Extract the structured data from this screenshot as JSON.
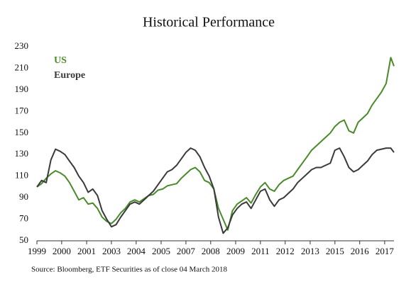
{
  "chart_data": {
    "type": "line",
    "title": "Historical Performance",
    "source": "Source: Bloomberg, ETF Securities as of close 04 March 2018",
    "x": [
      1999,
      1999.25,
      1999.5,
      1999.75,
      2000,
      2000.25,
      2000.5,
      2000.75,
      2001,
      2001.25,
      2001.5,
      2001.75,
      2002,
      2002.25,
      2002.5,
      2002.75,
      2003,
      2003.25,
      2003.5,
      2003.75,
      2004,
      2004.25,
      2004.5,
      2004.75,
      2005,
      2005.25,
      2005.5,
      2005.75,
      2006,
      2006.25,
      2006.5,
      2006.75,
      2007,
      2007.25,
      2007.5,
      2007.75,
      2008,
      2008.25,
      2008.5,
      2008.75,
      2009,
      2009.25,
      2009.5,
      2009.75,
      2010,
      2010.25,
      2010.5,
      2010.75,
      2011,
      2011.25,
      2011.5,
      2011.75,
      2012,
      2012.25,
      2012.5,
      2012.75,
      2013,
      2013.25,
      2013.5,
      2013.75,
      2014,
      2014.25,
      2014.5,
      2014.75,
      2015,
      2015.25,
      2015.5,
      2015.75,
      2016,
      2016.25,
      2016.5,
      2016.75,
      2017,
      2017.25,
      2017.5,
      2017.75,
      2018,
      2018.17
    ],
    "series": [
      {
        "name": "US",
        "color": "#4a8a2a",
        "values": [
          100,
          103,
          108,
          112,
          115,
          113,
          110,
          104,
          96,
          88,
          90,
          84,
          85,
          80,
          72,
          68,
          66,
          70,
          76,
          80,
          86,
          88,
          86,
          89,
          92,
          93,
          97,
          98,
          101,
          102,
          103,
          108,
          112,
          116,
          118,
          114,
          106,
          104,
          98,
          80,
          70,
          60,
          78,
          84,
          87,
          90,
          85,
          93,
          100,
          104,
          98,
          96,
          102,
          106,
          108,
          110,
          116,
          122,
          128,
          134,
          138,
          142,
          146,
          150,
          156,
          160,
          162,
          152,
          150,
          160,
          164,
          168,
          176,
          182,
          188,
          196,
          220,
          212
        ]
      },
      {
        "name": "Europe",
        "color": "#3a3a3a",
        "values": [
          100,
          106,
          104,
          125,
          135,
          133,
          130,
          124,
          118,
          110,
          104,
          95,
          98,
          92,
          78,
          70,
          63,
          65,
          72,
          78,
          84,
          86,
          84,
          88,
          92,
          96,
          102,
          108,
          114,
          116,
          120,
          126,
          132,
          136,
          134,
          128,
          118,
          110,
          98,
          72,
          57,
          62,
          74,
          80,
          84,
          86,
          80,
          88,
          96,
          98,
          88,
          82,
          88,
          90,
          94,
          98,
          104,
          108,
          112,
          116,
          118,
          118,
          120,
          122,
          134,
          136,
          128,
          118,
          114,
          116,
          120,
          124,
          130,
          134,
          135,
          136,
          136,
          132
        ]
      }
    ],
    "xlim": [
      1999,
      2018.17
    ],
    "xticks": [
      {
        "value": 1999,
        "label": "1999"
      },
      {
        "value": 2000.33,
        "label": "2000"
      },
      {
        "value": 2001.67,
        "label": "2001"
      },
      {
        "value": 2003.0,
        "label": "2003"
      },
      {
        "value": 2004.33,
        "label": "2004"
      },
      {
        "value": 2005.67,
        "label": "2005"
      },
      {
        "value": 2007.0,
        "label": "2007"
      },
      {
        "value": 2008.33,
        "label": "2008"
      },
      {
        "value": 2009.67,
        "label": "2009"
      },
      {
        "value": 2011.0,
        "label": "2011"
      },
      {
        "value": 2012.33,
        "label": "2012"
      },
      {
        "value": 2013.67,
        "label": "2013"
      },
      {
        "value": 2015.0,
        "label": "2015"
      },
      {
        "value": 2016.33,
        "label": "2016"
      },
      {
        "value": 2017.67,
        "label": "2017"
      }
    ],
    "ylim": [
      50,
      230
    ],
    "yticks": [
      50,
      70,
      90,
      110,
      130,
      150,
      170,
      190,
      210,
      230
    ],
    "legend": "upper left"
  }
}
